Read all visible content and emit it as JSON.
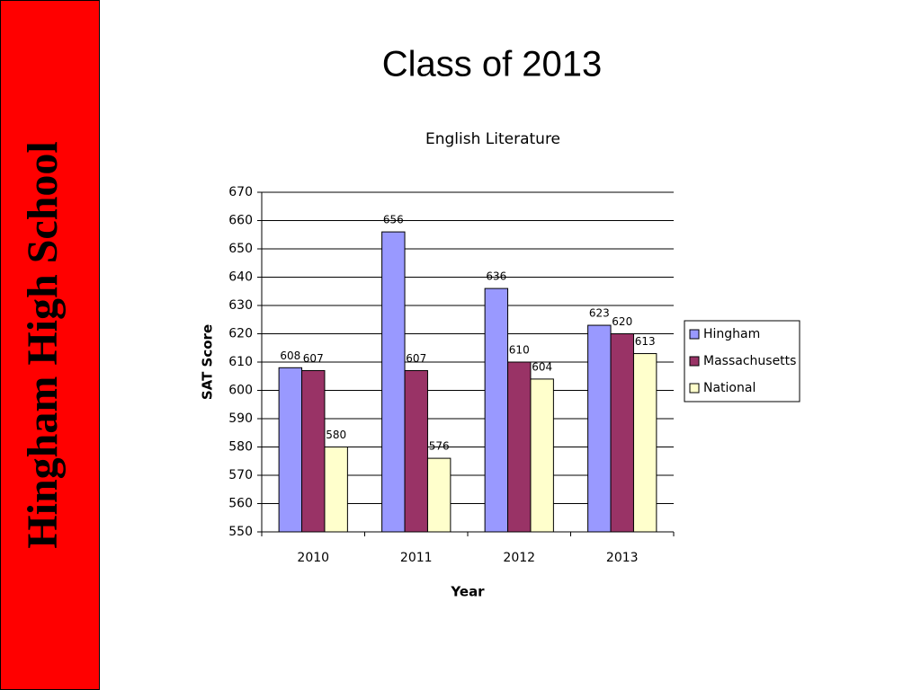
{
  "sidebar": {
    "text": "Hingham High School"
  },
  "slide_title": "Class of 2013",
  "chart_data": {
    "type": "bar",
    "title": "English Literature",
    "x_label": "Year",
    "y_label": "SAT Score",
    "categories": [
      "2010",
      "2011",
      "2012",
      "2013"
    ],
    "series": [
      {
        "name": "Hingham",
        "color": "#9999ff",
        "values": [
          608,
          656,
          636,
          623
        ]
      },
      {
        "name": "Massachusetts",
        "color": "#993366",
        "values": [
          607,
          607,
          610,
          620
        ]
      },
      {
        "name": "National",
        "color": "#ffffcc",
        "values": [
          580,
          576,
          604,
          613
        ]
      }
    ],
    "ylim": [
      550,
      670
    ],
    "yticks": [
      550,
      560,
      570,
      580,
      590,
      600,
      610,
      620,
      630,
      640,
      650,
      660,
      670
    ],
    "grid": true,
    "data_labels": true,
    "legend": "right"
  }
}
